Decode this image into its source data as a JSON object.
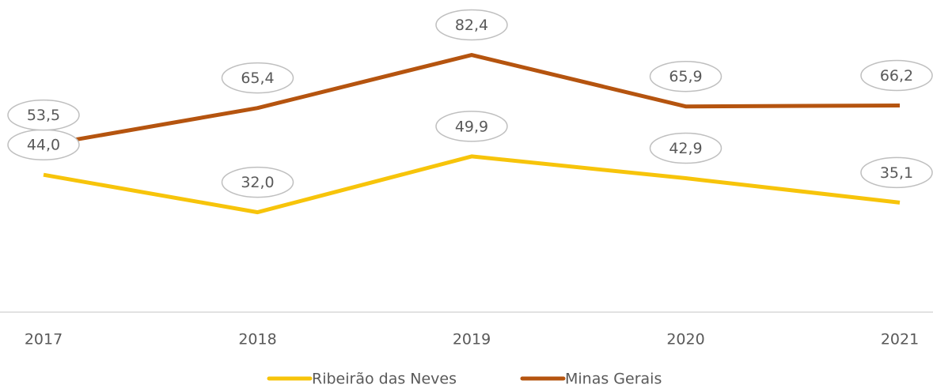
{
  "chart_data": {
    "type": "line",
    "categories": [
      "2017",
      "2018",
      "2019",
      "2020",
      "2021"
    ],
    "series": [
      {
        "name": "Ribeirão das Neves",
        "color": "#F7C40A",
        "values": [
          44.0,
          32.0,
          49.9,
          42.9,
          35.1
        ],
        "value_labels": [
          "44,0",
          "32,0",
          "49,9",
          "42,9",
          "35,1"
        ]
      },
      {
        "name": "Minas Gerais",
        "color": "#B5540F",
        "values": [
          53.5,
          65.4,
          82.4,
          65.9,
          66.2
        ],
        "value_labels": [
          "53,5",
          "65,4",
          "82,4",
          "65,9",
          "66,2"
        ]
      }
    ],
    "ylim": [
      0,
      100
    ],
    "legend": "bottom"
  }
}
